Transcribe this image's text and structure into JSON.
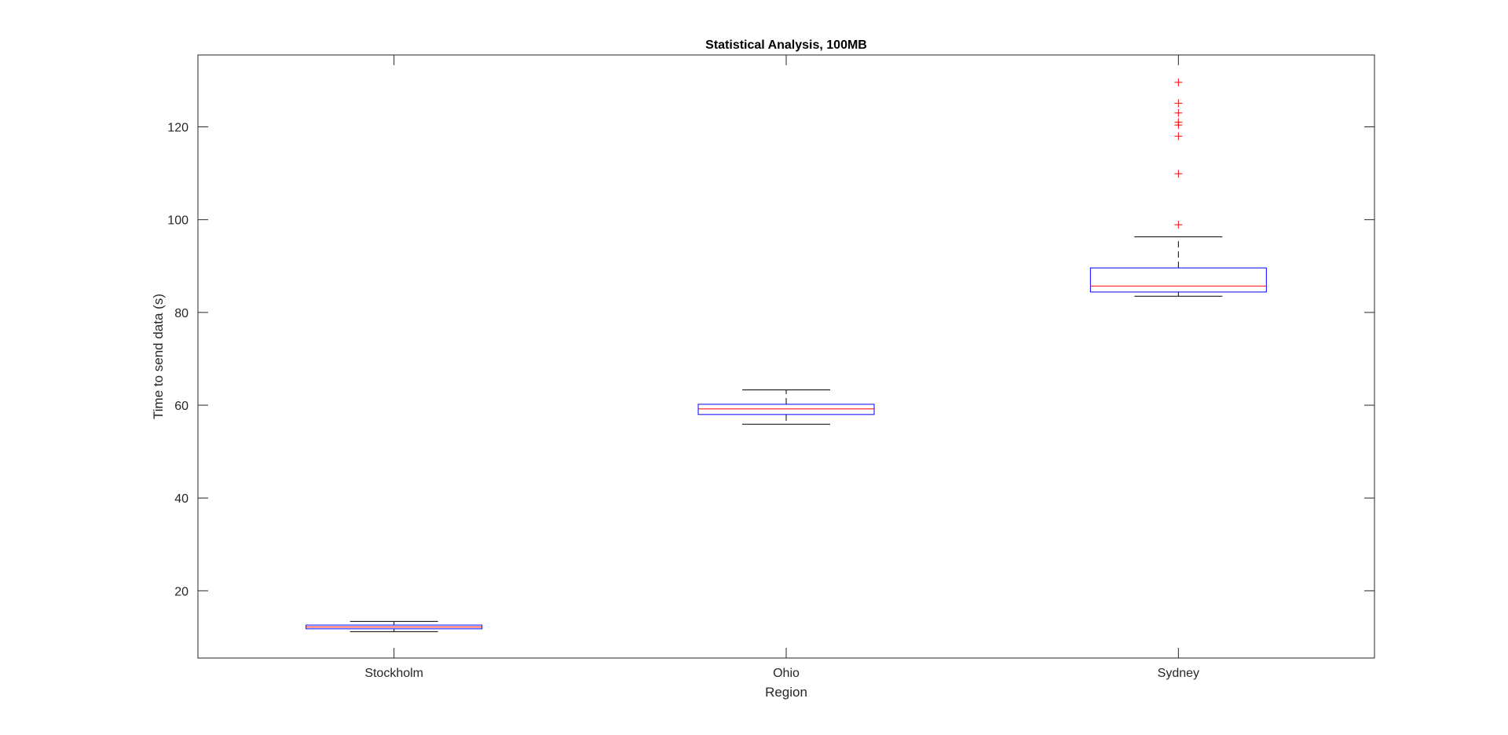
{
  "chart_data": {
    "type": "boxplot",
    "title": "Statistical Analysis, 100MB",
    "xlabel": "Region",
    "ylabel": "Time to send data (s)",
    "ylim": [
      5.5,
      135.5
    ],
    "yticks": [
      20,
      40,
      60,
      80,
      100,
      120
    ],
    "categories": [
      "Stockholm",
      "Ohio",
      "Sydney"
    ],
    "boxes": [
      {
        "name": "Stockholm",
        "whisker_low": 11.2,
        "q1": 11.8,
        "median": 12.2,
        "q3": 12.6,
        "whisker_high": 13.4,
        "outliers": []
      },
      {
        "name": "Ohio",
        "whisker_low": 55.9,
        "q1": 58.0,
        "median": 59.2,
        "q3": 60.2,
        "whisker_high": 63.3,
        "outliers": []
      },
      {
        "name": "Sydney",
        "whisker_low": 83.5,
        "q1": 84.4,
        "median": 85.7,
        "q3": 89.6,
        "whisker_high": 96.3,
        "outliers": [
          98.9,
          109.9,
          118.0,
          120.4,
          121.0,
          123.0,
          125.1,
          129.6
        ]
      }
    ],
    "colors": {
      "axes": "#262626",
      "box": "#0000ff",
      "median": "#ff0000",
      "whisker": "#000000",
      "outlier": "#ff0000"
    },
    "grid": false,
    "legend": "none"
  }
}
